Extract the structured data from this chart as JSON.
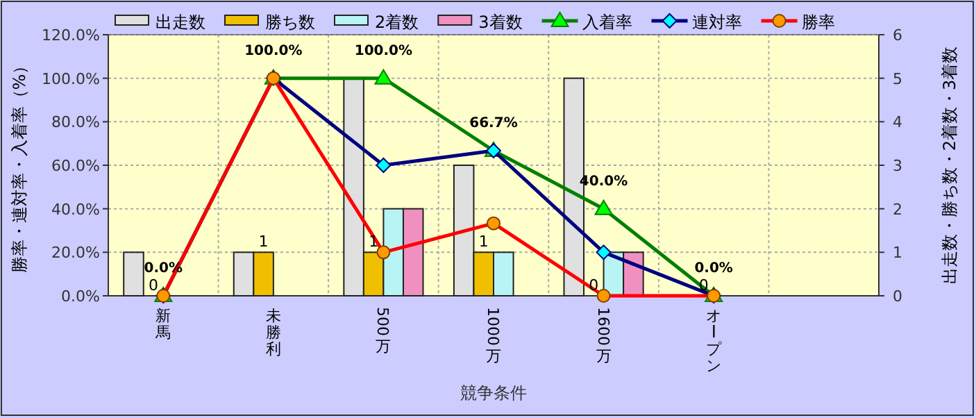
{
  "chart_data": {
    "type": "bar",
    "categories": [
      "新馬",
      "未勝利",
      "500万",
      "1000万",
      "1600万",
      "オープン",
      null
    ],
    "xlabel": "競争条件",
    "ylabel": "勝率・連対率・入着率（%）",
    "y2label": "出走数・勝ち数・2着数・3着数",
    "ylim": [
      0,
      120
    ],
    "yticks": [
      {
        "value": 0,
        "label": "0.0%"
      },
      {
        "value": 20,
        "label": "20.0%"
      },
      {
        "value": 40,
        "label": "40.0%"
      },
      {
        "value": 60,
        "label": "60.0%"
      },
      {
        "value": 80,
        "label": "80.0%"
      },
      {
        "value": 100,
        "label": "100.0%"
      },
      {
        "value": 120,
        "label": "120.0%"
      }
    ],
    "y2lim": [
      0,
      6
    ],
    "y2ticks": [
      0,
      1,
      2,
      3,
      4,
      5,
      6
    ],
    "grid": true,
    "legend": "top",
    "series": [
      {
        "name": "出走数",
        "axis": "y2",
        "color": "#e0e0e0",
        "values": [
          1,
          1,
          5,
          3,
          5,
          0,
          null
        ]
      },
      {
        "name": "勝ち数",
        "axis": "y2",
        "color": "#f0c000",
        "values": [
          0,
          1,
          1,
          1,
          0,
          0,
          null
        ],
        "value_labels": [
          "0",
          "1",
          "1",
          "1",
          "0",
          "0",
          null
        ]
      },
      {
        "name": "2着数",
        "axis": "y2",
        "color": "#b8f4f4",
        "values": [
          0,
          0,
          2,
          1,
          1,
          0,
          null
        ]
      },
      {
        "name": "3着数",
        "axis": "y2",
        "color": "#f090c0",
        "values": [
          0,
          0,
          2,
          0,
          1,
          0,
          null
        ]
      },
      {
        "name": "入着率",
        "type": "line",
        "color": "#008000",
        "marker": "triangle",
        "values": [
          0,
          100,
          100,
          66.7,
          40,
          0,
          null
        ],
        "value_labels": [
          "0.0%",
          "100.0%",
          "100.0%",
          "66.7%",
          "40.0%",
          "0.0%",
          null
        ]
      },
      {
        "name": "連対率",
        "type": "line",
        "color": "#000080",
        "marker": "diamond",
        "values": [
          0,
          100,
          60,
          66.7,
          20,
          0,
          null
        ]
      },
      {
        "name": "勝率",
        "type": "line",
        "color": "#ff0000",
        "marker": "circle",
        "values": [
          0,
          100,
          20,
          33.3,
          0,
          0,
          null
        ]
      }
    ]
  }
}
